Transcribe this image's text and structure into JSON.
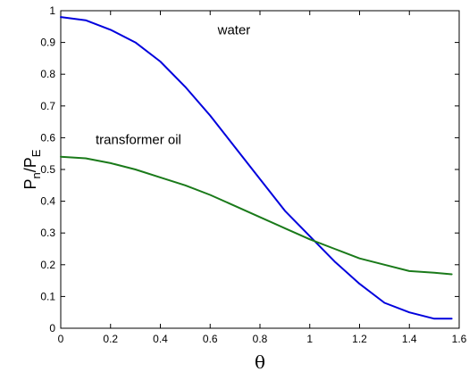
{
  "chart_data": {
    "type": "line",
    "title": "",
    "xlabel": "θ",
    "ylabel": {
      "p1": "P",
      "s1": "n",
      "mid": "/P",
      "s2": "E"
    },
    "xlim": [
      0,
      1.6
    ],
    "ylim": [
      0,
      1
    ],
    "xticks": [
      "0",
      "0.2",
      "0.4",
      "0.6",
      "0.8",
      "1",
      "1.2",
      "1.4",
      "1.6"
    ],
    "yticks": [
      "0",
      "0.1",
      "0.2",
      "0.3",
      "0.4",
      "0.5",
      "0.6",
      "0.7",
      "0.8",
      "0.9",
      "1"
    ],
    "grid": false,
    "legend": "none",
    "series": [
      {
        "color": "#0000dd",
        "x": [
          0,
          0.1,
          0.2,
          0.3,
          0.4,
          0.5,
          0.6,
          0.7,
          0.8,
          0.9,
          1.0,
          1.1,
          1.2,
          1.3,
          1.4,
          1.5,
          1.57
        ],
        "y": [
          0.98,
          0.97,
          0.94,
          0.9,
          0.84,
          0.76,
          0.67,
          0.57,
          0.47,
          0.37,
          0.29,
          0.21,
          0.14,
          0.08,
          0.05,
          0.03,
          0.03
        ]
      },
      {
        "color": "#1a7a1a",
        "x": [
          0,
          0.1,
          0.2,
          0.3,
          0.4,
          0.5,
          0.6,
          0.7,
          0.8,
          0.9,
          1.0,
          1.1,
          1.2,
          1.3,
          1.4,
          1.5,
          1.57
        ],
        "y": [
          0.54,
          0.535,
          0.52,
          0.5,
          0.475,
          0.45,
          0.42,
          0.385,
          0.35,
          0.315,
          0.28,
          0.25,
          0.22,
          0.2,
          0.18,
          0.175,
          0.17
        ]
      }
    ],
    "annotations": [
      {
        "text": "water",
        "x": 0.63,
        "y": 0.925
      },
      {
        "text": "transformer oil",
        "x": 0.14,
        "y": 0.58
      }
    ]
  }
}
